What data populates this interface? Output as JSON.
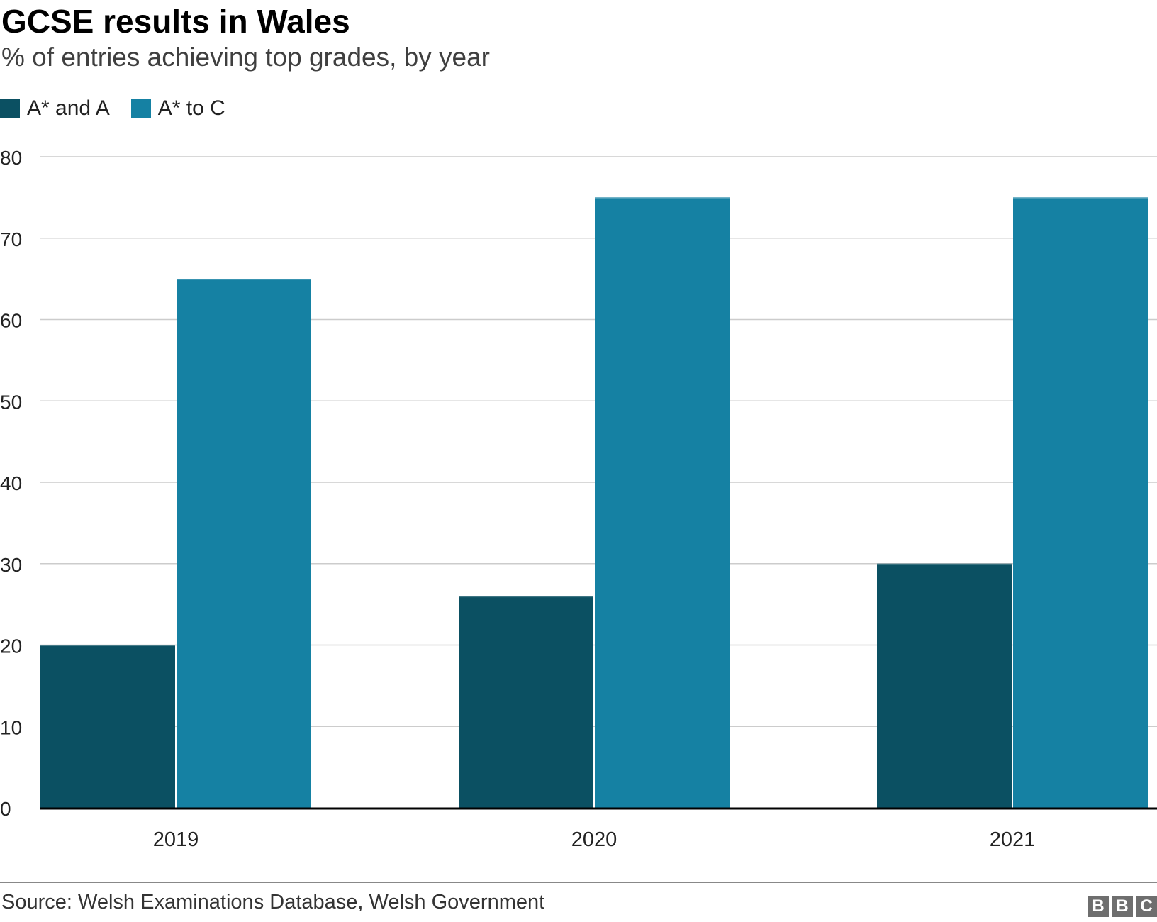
{
  "header": {
    "title": "GCSE results in Wales",
    "subtitle": "% of entries achieving top grades, by year"
  },
  "legend": {
    "items": [
      {
        "label": "A* and A",
        "color": "#0b5062"
      },
      {
        "label": "A* to C",
        "color": "#1581a3"
      }
    ]
  },
  "chart_data": {
    "type": "bar",
    "title": "GCSE results in Wales",
    "subtitle": "% of entries achieving top grades, by year",
    "xlabel": "",
    "ylabel": "",
    "categories": [
      "2019",
      "2020",
      "2021"
    ],
    "series": [
      {
        "name": "A* and A",
        "color": "#0b5062",
        "values": [
          20,
          26,
          30
        ]
      },
      {
        "name": "A* to C",
        "color": "#1581a3",
        "values": [
          65,
          75,
          75
        ]
      }
    ],
    "ylim": [
      0,
      80
    ],
    "yticks": [
      0,
      10,
      20,
      30,
      40,
      50,
      60,
      70,
      80
    ],
    "grid": true,
    "legend_position": "top-left"
  },
  "footer": {
    "source": "Source: Welsh Examinations Database, Welsh Government",
    "logo_letters": [
      "B",
      "B",
      "C"
    ]
  }
}
